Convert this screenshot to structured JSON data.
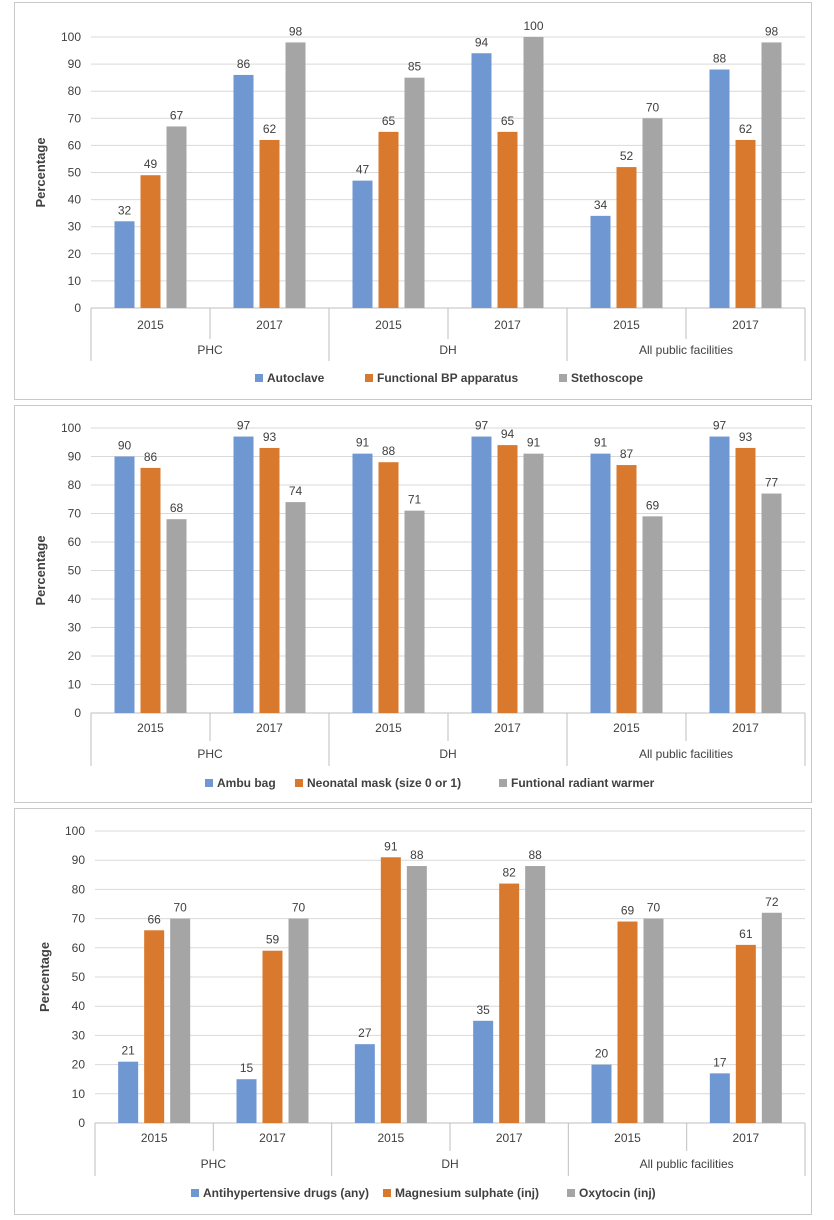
{
  "colors": {
    "blue": "#6f97d2",
    "orange": "#d9792e",
    "gray": "#a5a5a5",
    "grid": "#d9d9d9",
    "axis": "#bfbfbf",
    "text": "#404040"
  },
  "chart_data": [
    {
      "type": "bar",
      "title": "",
      "ylabel": "Percentage",
      "xlabel": "",
      "ylim": [
        0,
        100
      ],
      "yticks": [
        "0",
        "10",
        "20",
        "30",
        "40",
        "50",
        "60",
        "70",
        "80",
        "90",
        "100"
      ],
      "groups": [
        "PHC",
        "DH",
        "All public facilities"
      ],
      "categories": [
        "2015",
        "2017",
        "2015",
        "2017",
        "2015",
        "2017"
      ],
      "legend_position": "bottom",
      "series": [
        {
          "name": "Autoclave",
          "color": "#6f97d2",
          "values": [
            32,
            86,
            47,
            94,
            34,
            88
          ]
        },
        {
          "name": "Functional BP apparatus",
          "color": "#d9792e",
          "values": [
            49,
            62,
            65,
            65,
            52,
            62
          ]
        },
        {
          "name": "Stethoscope",
          "color": "#a5a5a5",
          "values": [
            67,
            98,
            85,
            100,
            70,
            98
          ]
        }
      ]
    },
    {
      "type": "bar",
      "title": "",
      "ylabel": "Percentage",
      "xlabel": "",
      "ylim": [
        0,
        100
      ],
      "yticks": [
        "0",
        "10",
        "20",
        "30",
        "40",
        "50",
        "60",
        "70",
        "80",
        "90",
        "100"
      ],
      "groups": [
        "PHC",
        "DH",
        "All public facilities"
      ],
      "categories": [
        "2015",
        "2017",
        "2015",
        "2017",
        "2015",
        "2017"
      ],
      "legend_position": "bottom",
      "series": [
        {
          "name": "Ambu bag",
          "color": "#6f97d2",
          "values": [
            90,
            97,
            91,
            97,
            91,
            97
          ]
        },
        {
          "name": "Neonatal mask (size 0 or 1)",
          "color": "#d9792e",
          "values": [
            86,
            93,
            88,
            94,
            87,
            93
          ]
        },
        {
          "name": "Funtional radiant warmer",
          "color": "#a5a5a5",
          "values": [
            68,
            74,
            71,
            91,
            69,
            77
          ]
        }
      ]
    },
    {
      "type": "bar",
      "title": "",
      "ylabel": "Percentage",
      "xlabel": "",
      "ylim": [
        0,
        100
      ],
      "yticks": [
        "0",
        "10",
        "20",
        "30",
        "40",
        "50",
        "60",
        "70",
        "80",
        "90",
        "100"
      ],
      "groups": [
        "PHC",
        "DH",
        "All public facilities"
      ],
      "categories": [
        "2015",
        "2017",
        "2015",
        "2017",
        "2015",
        "2017"
      ],
      "legend_position": "bottom",
      "series": [
        {
          "name": "Antihypertensive drugs (any)",
          "color": "#6f97d2",
          "values": [
            21,
            15,
            27,
            35,
            20,
            17
          ]
        },
        {
          "name": "Magnesium sulphate (inj)",
          "color": "#d9792e",
          "values": [
            66,
            59,
            91,
            82,
            69,
            61
          ]
        },
        {
          "name": "Oxytocin (inj)",
          "color": "#a5a5a5",
          "values": [
            70,
            70,
            88,
            88,
            70,
            72
          ]
        }
      ]
    }
  ]
}
